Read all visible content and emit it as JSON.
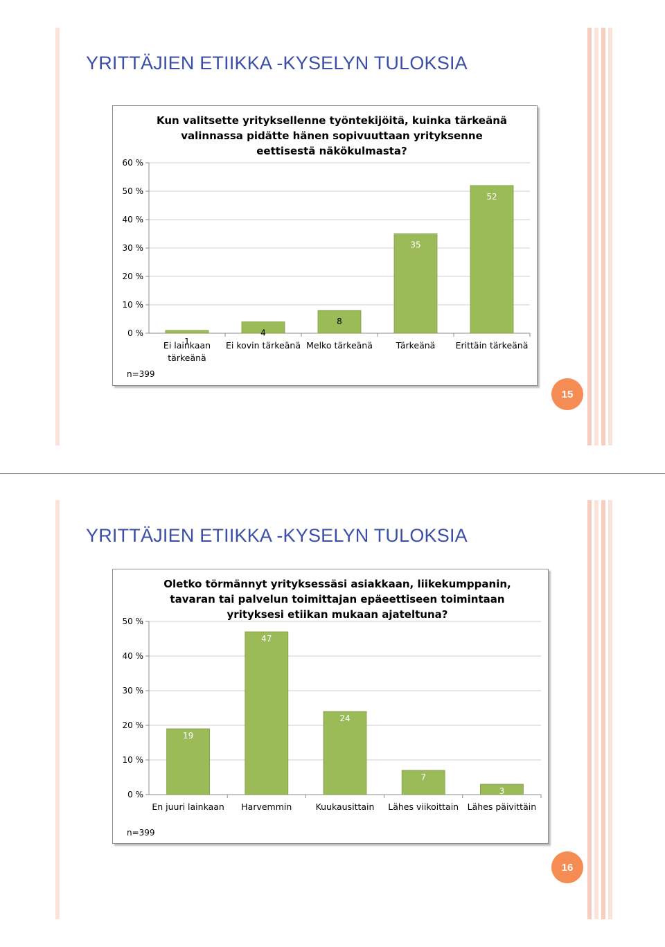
{
  "slides": [
    {
      "title": "YRITTÄJIEN ETIIKKA -KYSELYN TULOKSIA",
      "page_number": "15",
      "n_label": "n=399"
    },
    {
      "title": "YRITTÄJIEN ETIIKKA -KYSELYN TULOKSIA",
      "page_number": "16",
      "n_label": "n=399"
    }
  ],
  "colors": {
    "bar": "#9bbb59",
    "bar_edge": "#7f9c45",
    "accent": "#f58c53",
    "title": "#3b4fa8"
  },
  "chart_data": [
    {
      "type": "bar",
      "title": "Kun valitsette yrityksellenne työntekijöitä, kuinka tärkeänä valinnassa pidätte hänen sopivuuttaan yrityksenne eettisestä näkökulmasta?",
      "title_lines": [
        "Kun valitsette yrityksellenne työntekijöitä, kuinka tärkeänä",
        "valinnassa pidätte hänen sopivuuttaan yrityksenne",
        "eettisestä näkökulmasta?"
      ],
      "categories": [
        "Ei lainkaan tärkeänä",
        "Ei kovin tärkeänä",
        "Melko tärkeänä",
        "Tärkeänä",
        "Erittäin tärkeänä"
      ],
      "category_lines": [
        [
          "Ei lainkaan",
          "tärkeänä"
        ],
        [
          "Ei kovin tärkeänä"
        ],
        [
          "Melko tärkeänä"
        ],
        [
          "Tärkeänä"
        ],
        [
          "Erittäin tärkeänä"
        ]
      ],
      "values": [
        1,
        4,
        8,
        35,
        52
      ],
      "data_labels": [
        "1",
        "4",
        "8",
        "35",
        "52"
      ],
      "yticks": [
        "0 %",
        "10 %",
        "20 %",
        "30 %",
        "40 %",
        "50 %",
        "60 %"
      ],
      "ylim": [
        0,
        60
      ],
      "xlabel": "",
      "ylabel": ""
    },
    {
      "type": "bar",
      "title": "Oletko törmännyt yrityksessäsi asiakkaan, liikekumppanin, tavaran tai palvelun toimittajan epäeettiseen toimintaan yrityksesi etiikan mukaan ajateltuna?",
      "title_lines": [
        "Oletko törmännyt yrityksessäsi asiakkaan, liikekumppanin,",
        "tavaran tai palvelun toimittajan epäeettiseen toimintaan",
        "yrityksesi etiikan mukaan ajateltuna?"
      ],
      "categories": [
        "En juuri lainkaan",
        "Harvemmin",
        "Kuukausittain",
        "Lähes viikoittain",
        "Lähes päivittäin"
      ],
      "category_lines": [
        [
          "En juuri lainkaan"
        ],
        [
          "Harvemmin"
        ],
        [
          "Kuukausittain"
        ],
        [
          "Lähes viikoittain"
        ],
        [
          "Lähes päivittäin"
        ]
      ],
      "values": [
        19,
        47,
        24,
        7,
        3
      ],
      "data_labels": [
        "19",
        "47",
        "24",
        "7",
        "3"
      ],
      "yticks": [
        "0 %",
        "10 %",
        "20 %",
        "30 %",
        "40 %",
        "50 %"
      ],
      "ylim": [
        0,
        50
      ],
      "xlabel": "",
      "ylabel": ""
    }
  ]
}
